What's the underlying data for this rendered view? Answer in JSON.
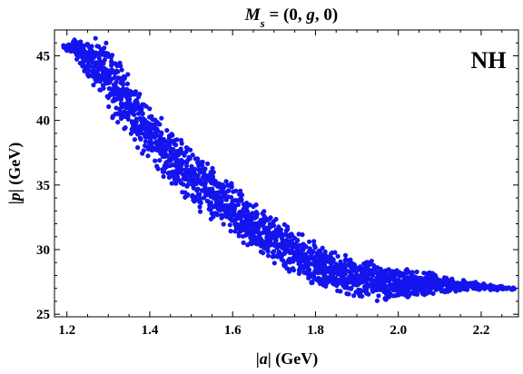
{
  "chart_data": {
    "type": "scatter",
    "title": "M_s = (0, g, 0)",
    "annotation": "NH",
    "xlabel": "|a| (GeV)",
    "ylabel": "|p| (GeV)",
    "xlim": [
      1.17,
      2.29
    ],
    "ylim": [
      24.8,
      47.0
    ],
    "xticks": [
      1.2,
      1.4,
      1.6,
      1.8,
      2.0,
      2.2
    ],
    "xtick_labels": [
      "1.2",
      "1.4",
      "1.6",
      "1.8",
      "2.0",
      "2.2"
    ],
    "yticks": [
      25,
      30,
      35,
      40,
      45
    ],
    "ytick_labels": [
      "25",
      "30",
      "35",
      "40",
      "45"
    ],
    "grid": false,
    "marker_color": "#1414ee",
    "series": [
      {
        "x": [
          1.19,
          1.2,
          1.21,
          1.22,
          1.23,
          1.24,
          1.25,
          1.26,
          1.27,
          1.28,
          1.29,
          1.3,
          1.31,
          1.32,
          1.33,
          1.34,
          1.35,
          1.36,
          1.37,
          1.38,
          1.39,
          1.4,
          1.41,
          1.42,
          1.43,
          1.44,
          1.45,
          1.46,
          1.47,
          1.48,
          1.49,
          1.5,
          1.51,
          1.52,
          1.53,
          1.54,
          1.55,
          1.56,
          1.57,
          1.58,
          1.59,
          1.6,
          1.61,
          1.62,
          1.63,
          1.64,
          1.65,
          1.66,
          1.67,
          1.68,
          1.69,
          1.7,
          1.71,
          1.72,
          1.73,
          1.74,
          1.75,
          1.76,
          1.77,
          1.78,
          1.79,
          1.8,
          1.81,
          1.82,
          1.83,
          1.84,
          1.85,
          1.86,
          1.87,
          1.88,
          1.89,
          1.9,
          1.91,
          1.92,
          1.93,
          1.94,
          1.95,
          1.96,
          1.97,
          1.98,
          1.99,
          2.0,
          2.01,
          2.02,
          2.03,
          2.04,
          2.05,
          2.06,
          2.07,
          2.08,
          2.09,
          2.1,
          2.11,
          2.12,
          2.13,
          2.14,
          2.15,
          2.16,
          2.17,
          2.18,
          2.19,
          2.2,
          2.21,
          2.22,
          2.23,
          2.24,
          2.25,
          2.27
        ],
        "y_low": [
          45.4,
          45.1,
          44.8,
          44.5,
          44.0,
          43.5,
          43.0,
          42.5,
          42.0,
          41.5,
          41.0,
          40.5,
          40.0,
          39.6,
          39.2,
          38.8,
          38.4,
          38.0,
          37.6,
          37.2,
          36.8,
          36.5,
          36.1,
          35.8,
          35.4,
          35.1,
          34.8,
          34.5,
          34.2,
          33.9,
          33.6,
          33.3,
          33.0,
          32.8,
          32.5,
          32.2,
          32.0,
          31.7,
          31.5,
          31.2,
          31.0,
          30.8,
          30.5,
          30.3,
          30.1,
          29.9,
          29.7,
          29.5,
          29.3,
          29.1,
          28.9,
          28.7,
          28.5,
          28.3,
          28.1,
          27.9,
          27.7,
          27.6,
          27.4,
          27.3,
          27.1,
          27.0,
          26.9,
          26.8,
          26.7,
          26.6,
          26.5,
          26.4,
          26.3,
          26.2,
          26.1,
          26.0,
          26.0,
          25.9,
          25.9,
          25.9,
          25.8,
          25.8,
          25.8,
          25.9,
          25.9,
          26.0,
          26.0,
          26.1,
          26.1,
          26.2,
          26.3,
          26.3,
          26.4,
          26.5,
          26.5,
          26.6,
          26.6,
          26.7,
          26.7,
          26.8,
          26.8,
          26.8,
          26.9,
          26.9,
          26.9,
          26.9,
          26.9,
          26.8,
          26.8,
          26.9,
          26.9,
          26.9
        ],
        "y_high": [
          45.9,
          46.2,
          46.4,
          46.5,
          46.5,
          46.5,
          46.5,
          46.5,
          46.4,
          46.3,
          46.1,
          45.8,
          45.4,
          45.0,
          44.5,
          44.0,
          43.5,
          43.0,
          42.5,
          42.0,
          41.6,
          41.2,
          40.8,
          40.4,
          40.0,
          39.7,
          39.4,
          39.1,
          38.8,
          38.5,
          38.2,
          37.9,
          37.6,
          37.3,
          37.0,
          36.7,
          36.4,
          36.1,
          35.8,
          35.6,
          35.3,
          35.0,
          34.8,
          34.5,
          34.3,
          34.0,
          33.8,
          33.5,
          33.3,
          33.1,
          32.8,
          32.6,
          32.4,
          32.2,
          32.0,
          31.8,
          31.6,
          31.4,
          31.2,
          31.0,
          30.8,
          30.6,
          30.5,
          30.3,
          30.2,
          30.1,
          30.0,
          29.9,
          29.8,
          29.7,
          29.6,
          29.5,
          29.5,
          29.4,
          29.3,
          29.2,
          29.1,
          29.0,
          29.0,
          28.9,
          28.8,
          28.8,
          28.7,
          28.6,
          28.6,
          28.5,
          28.4,
          28.3,
          28.3,
          28.2,
          28.1,
          28.0,
          28.0,
          27.9,
          27.8,
          27.8,
          27.7,
          27.6,
          27.6,
          27.5,
          27.4,
          27.4,
          27.3,
          27.3,
          27.2,
          27.2,
          27.1,
          27.1
        ],
        "points_per_column": 22
      }
    ]
  }
}
